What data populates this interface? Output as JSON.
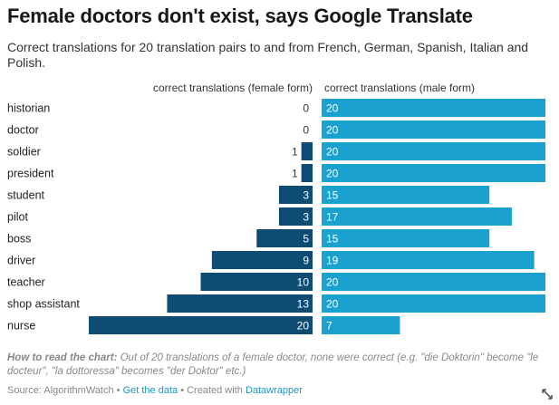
{
  "header": {
    "title": "Female doctors don't exist, says Google Translate",
    "subtitle": "Correct translations for 20 translation pairs to and from French, German, Spanish, Italian and Polish."
  },
  "colors": {
    "female": "#0f4c74",
    "male": "#1aa1cf"
  },
  "chart_data": {
    "type": "bar",
    "categories": [
      "historian",
      "doctor",
      "soldier",
      "president",
      "student",
      "pilot",
      "boss",
      "driver",
      "teacher",
      "shop assistant",
      "nurse"
    ],
    "series": [
      {
        "name": "correct translations (female form)",
        "values": [
          0,
          0,
          1,
          1,
          3,
          3,
          5,
          9,
          10,
          13,
          20
        ]
      },
      {
        "name": "correct translations (male form)",
        "values": [
          20,
          20,
          20,
          20,
          15,
          17,
          15,
          19,
          20,
          20,
          7
        ]
      }
    ],
    "xlim": [
      0,
      20
    ],
    "title": "Female doctors don't exist, says Google Translate"
  },
  "notes": {
    "lead": "How to read the chart:",
    "text": "Out of 20 translations of a female doctor, none were correct (e.g. \"die Doktorin\" become \"le docteur\", \"la dottoressa\" becomes \"der Doktor\" etc.)"
  },
  "footer": {
    "source": "Source: AlgorithmWatch",
    "sep1": "•",
    "get_data": "Get the data",
    "sep2": "•",
    "created": "Created with",
    "tool": "Datawrapper"
  }
}
